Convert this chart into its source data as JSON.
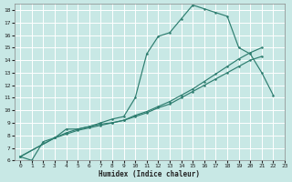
{
  "xlabel": "Humidex (Indice chaleur)",
  "xlim": [
    -0.5,
    23
  ],
  "ylim": [
    6,
    18.5
  ],
  "xticks": [
    0,
    1,
    2,
    3,
    4,
    5,
    6,
    7,
    8,
    9,
    10,
    11,
    12,
    13,
    14,
    15,
    16,
    17,
    18,
    19,
    20,
    21,
    22,
    23
  ],
  "yticks": [
    6,
    7,
    8,
    9,
    10,
    11,
    12,
    13,
    14,
    15,
    16,
    17,
    18
  ],
  "line_color": "#2d7d6f",
  "bg_color": "#c8e8e5",
  "grid_color": "#ffffff",
  "curve1_x": [
    0,
    1,
    2,
    3,
    4,
    5,
    6,
    7,
    8,
    9,
    10,
    11,
    12,
    13,
    14,
    15,
    16,
    17,
    18,
    19,
    20,
    21,
    22
  ],
  "curve1_y": [
    6.3,
    6.0,
    7.5,
    7.8,
    8.5,
    8.5,
    8.7,
    9.0,
    9.3,
    9.5,
    11.0,
    14.5,
    15.9,
    16.2,
    17.3,
    18.4,
    18.1,
    17.8,
    17.5,
    15.0,
    14.5,
    13.0,
    11.2
  ],
  "curve2_x": [
    0,
    3,
    4,
    5,
    6,
    7,
    8,
    9,
    10,
    11,
    12,
    13,
    14,
    15,
    16,
    17,
    18,
    19,
    20,
    21
  ],
  "curve2_y": [
    6.3,
    7.8,
    8.2,
    8.5,
    8.7,
    8.9,
    9.0,
    9.2,
    9.5,
    9.8,
    10.2,
    10.5,
    11.0,
    11.5,
    12.0,
    12.5,
    13.0,
    13.5,
    14.0,
    14.3
  ],
  "curve3_x": [
    0,
    3,
    4,
    5,
    6,
    7,
    8,
    9,
    10,
    11,
    12,
    13,
    14,
    15,
    16,
    17,
    18,
    19,
    20,
    21
  ],
  "curve3_y": [
    6.3,
    7.8,
    8.1,
    8.4,
    8.6,
    8.8,
    9.0,
    9.2,
    9.6,
    9.9,
    10.3,
    10.7,
    11.2,
    11.7,
    12.3,
    12.9,
    13.5,
    14.1,
    14.6,
    15.0
  ]
}
